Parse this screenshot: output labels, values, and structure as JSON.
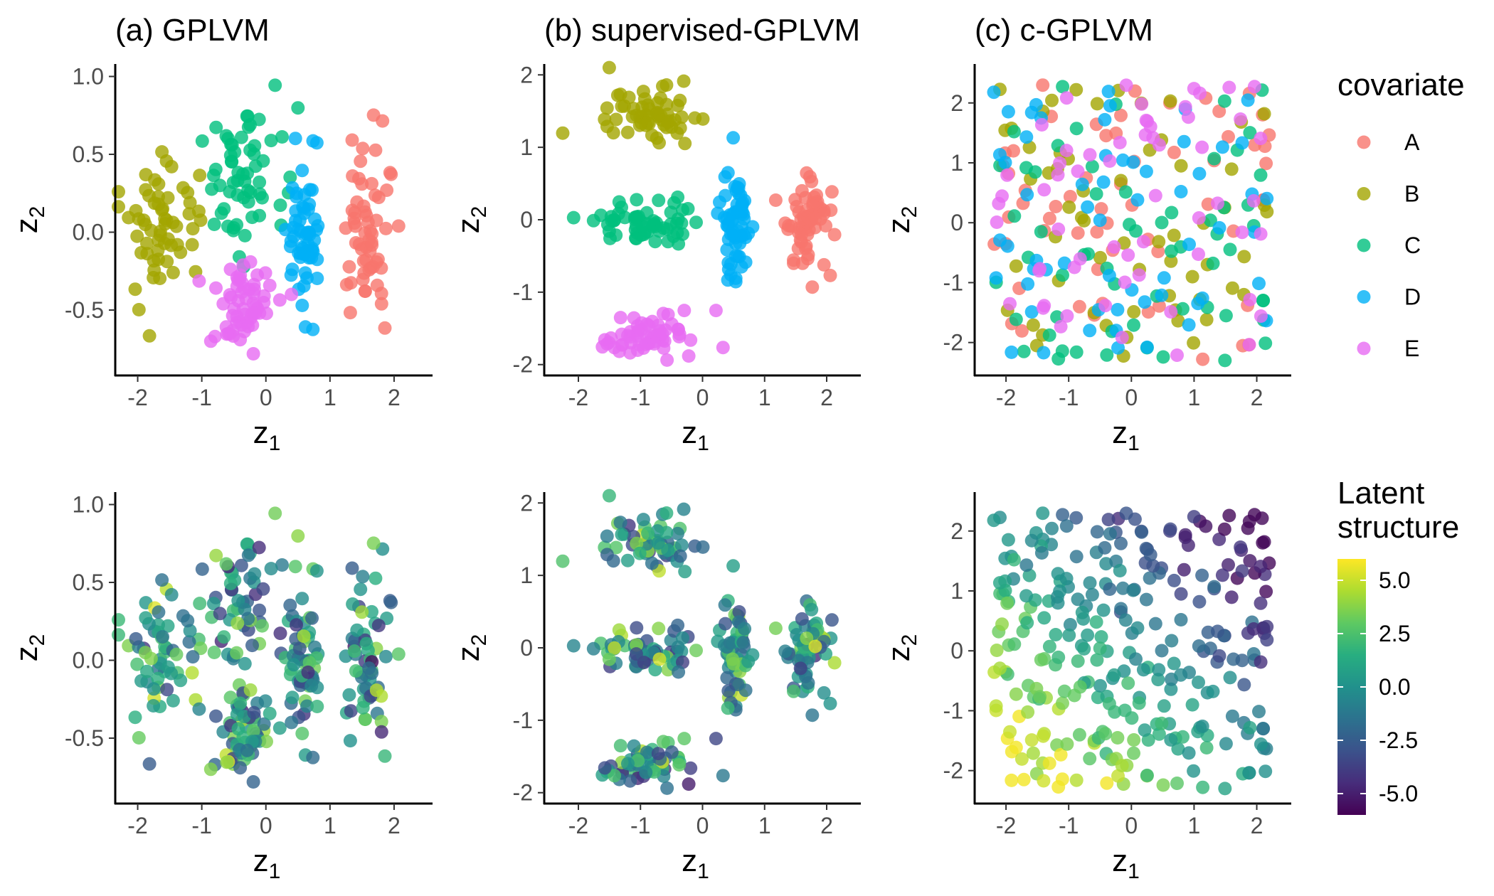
{
  "chart_data": {
    "type": "scatter",
    "categories": [
      "A",
      "B",
      "C",
      "D",
      "E"
    ],
    "category_colors": {
      "A": "#F8766D",
      "B": "#A3A500",
      "C": "#00BF7D",
      "D": "#00B0F6",
      "E": "#E76BF3"
    },
    "xlabel": "z",
    "xlabel_sub": "1",
    "ylabel": "z",
    "ylabel_sub": "2",
    "legend_covariate": {
      "title": "covariate",
      "entries": [
        "A",
        "B",
        "C",
        "D",
        "E"
      ]
    },
    "legend_latent": {
      "title_line1": "Latent",
      "title_line2": "structure",
      "range": [
        -6,
        6
      ],
      "ticks": [
        5.0,
        2.5,
        0.0,
        -2.5,
        -5.0
      ],
      "tick_labels": [
        "5.0",
        "2.5",
        "0.0",
        "-2.5",
        "-5.0"
      ],
      "colormap": [
        "#440154",
        "#472d7b",
        "#3b528b",
        "#2c728e",
        "#21918c",
        "#28ae80",
        "#5ec962",
        "#addc30",
        "#fde725"
      ]
    },
    "panels": [
      {
        "title": "(a) GPLVM",
        "xlim": [
          -2.35,
          2.6
        ],
        "ylim": [
          -0.92,
          1.08
        ],
        "xticks": [
          -2,
          -1,
          0,
          1,
          2
        ],
        "xtick_labels": [
          "-2",
          "-1",
          "0",
          "1",
          "2"
        ],
        "yticks": [
          -0.5,
          0.0,
          0.5,
          1.0
        ],
        "ytick_labels": [
          "-0.5",
          "0.0",
          "0.5",
          "1.0"
        ],
        "clusters": [
          {
            "category": "A",
            "cx": 1.6,
            "cy": 0.0,
            "sx": 0.22,
            "sy": 0.24,
            "n": 60,
            "shape": "gauss"
          },
          {
            "category": "B",
            "cx": -1.6,
            "cy": 0.05,
            "sx": 0.35,
            "sy": 0.22,
            "n": 60,
            "shape": "gauss"
          },
          {
            "category": "C",
            "cx": -0.4,
            "cy": 0.35,
            "sx": 0.32,
            "sy": 0.22,
            "n": 60,
            "shape": "gauss"
          },
          {
            "category": "D",
            "cx": 0.6,
            "cy": 0.0,
            "sx": 0.12,
            "sy": 0.25,
            "n": 60,
            "shape": "gauss"
          },
          {
            "category": "E",
            "cx": -0.35,
            "cy": -0.48,
            "sx": 0.22,
            "sy": 0.14,
            "n": 60,
            "shape": "gauss"
          }
        ]
      },
      {
        "title": "(b) supervised-GPLVM",
        "xlim": [
          -2.55,
          2.55
        ],
        "ylim": [
          -2.15,
          2.15
        ],
        "xticks": [
          -2,
          -1,
          0,
          1,
          2
        ],
        "xtick_labels": [
          "-2",
          "-1",
          "0",
          "1",
          "2"
        ],
        "yticks": [
          -2,
          -1,
          0,
          1,
          2
        ],
        "ytick_labels": [
          "-2",
          "-1",
          "0",
          "1",
          "2"
        ],
        "clusters": [
          {
            "category": "A",
            "cx": 1.65,
            "cy": 0.0,
            "sx": 0.22,
            "sy": 0.35,
            "n": 60,
            "shape": "gauss"
          },
          {
            "category": "B",
            "cx": -0.9,
            "cy": 1.45,
            "sx": 0.45,
            "sy": 0.22,
            "n": 60,
            "shape": "gauss"
          },
          {
            "category": "C",
            "cx": -0.9,
            "cy": -0.05,
            "sx": 0.45,
            "sy": 0.15,
            "n": 60,
            "shape": "gauss"
          },
          {
            "category": "D",
            "cx": 0.55,
            "cy": 0.0,
            "sx": 0.12,
            "sy": 0.45,
            "n": 60,
            "shape": "gauss"
          },
          {
            "category": "E",
            "cx": -0.9,
            "cy": -1.6,
            "sx": 0.45,
            "sy": 0.2,
            "n": 60,
            "shape": "gauss"
          }
        ]
      },
      {
        "title": "(c) c-GPLVM",
        "xlim": [
          -2.5,
          2.55
        ],
        "ylim": [
          -2.55,
          2.65
        ],
        "xticks": [
          -2,
          -1,
          0,
          1,
          2
        ],
        "xtick_labels": [
          "-2",
          "-1",
          "0",
          "1",
          "2"
        ],
        "yticks": [
          -2,
          -1,
          0,
          1,
          2
        ],
        "ytick_labels": [
          "-2",
          "-1",
          "0",
          "1",
          "2"
        ],
        "clusters": [
          {
            "category": "A",
            "cx": 0.0,
            "cy": 0.0,
            "sx": 2.2,
            "sy": 2.3,
            "n": 60,
            "shape": "uniform"
          },
          {
            "category": "B",
            "cx": 0.0,
            "cy": 0.0,
            "sx": 2.2,
            "sy": 2.3,
            "n": 60,
            "shape": "uniform"
          },
          {
            "category": "C",
            "cx": 0.0,
            "cy": 0.0,
            "sx": 2.2,
            "sy": 2.3,
            "n": 60,
            "shape": "uniform"
          },
          {
            "category": "D",
            "cx": 0.0,
            "cy": 0.0,
            "sx": 2.2,
            "sy": 2.3,
            "n": 60,
            "shape": "uniform"
          },
          {
            "category": "E",
            "cx": 0.0,
            "cy": 0.0,
            "sx": 2.2,
            "sy": 2.3,
            "n": 60,
            "shape": "uniform"
          }
        ]
      }
    ]
  }
}
